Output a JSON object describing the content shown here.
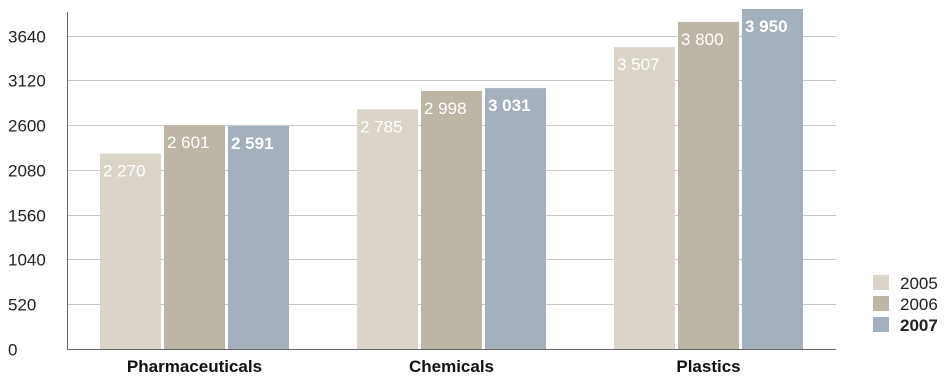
{
  "chart_data": {
    "type": "bar",
    "categories": [
      "Pharmaceuticals",
      "Chemicals",
      "Plastics"
    ],
    "series": [
      {
        "name": "2005",
        "values": [
          2270,
          2785,
          3507
        ],
        "labels": [
          "2 270",
          "2 785",
          "3 507"
        ],
        "color": "#dad4c9",
        "legend_color": "#dad4c9",
        "bold": false
      },
      {
        "name": "2006",
        "values": [
          2601,
          2998,
          3800
        ],
        "labels": [
          "2 601",
          "2 998",
          "3 800"
        ],
        "color": "#bdb5a5",
        "legend_color": "#bdb5a5",
        "bold": false
      },
      {
        "name": "2007",
        "values": [
          2591,
          3031,
          3950
        ],
        "labels": [
          "2 591",
          "3 031",
          "3 950"
        ],
        "color": "#a5b0bd",
        "legend_color": "#a5b0bd",
        "bold": true,
        "legend_text_color": "#b5272b"
      }
    ],
    "y_ticks": [
      {
        "value": 0,
        "label": "0"
      },
      {
        "value": 520,
        "label": "520"
      },
      {
        "value": 1040,
        "label": "1040"
      },
      {
        "value": 1560,
        "label": "1560"
      },
      {
        "value": 2080,
        "label": "2080"
      },
      {
        "value": 2600,
        "label": "2600"
      },
      {
        "value": 3120,
        "label": "3120"
      },
      {
        "value": 3640,
        "label": "3640"
      }
    ],
    "ylim": [
      0,
      3950
    ],
    "grid": true,
    "legend_position": "bottom-right",
    "title": "",
    "xlabel": "",
    "ylabel": ""
  }
}
